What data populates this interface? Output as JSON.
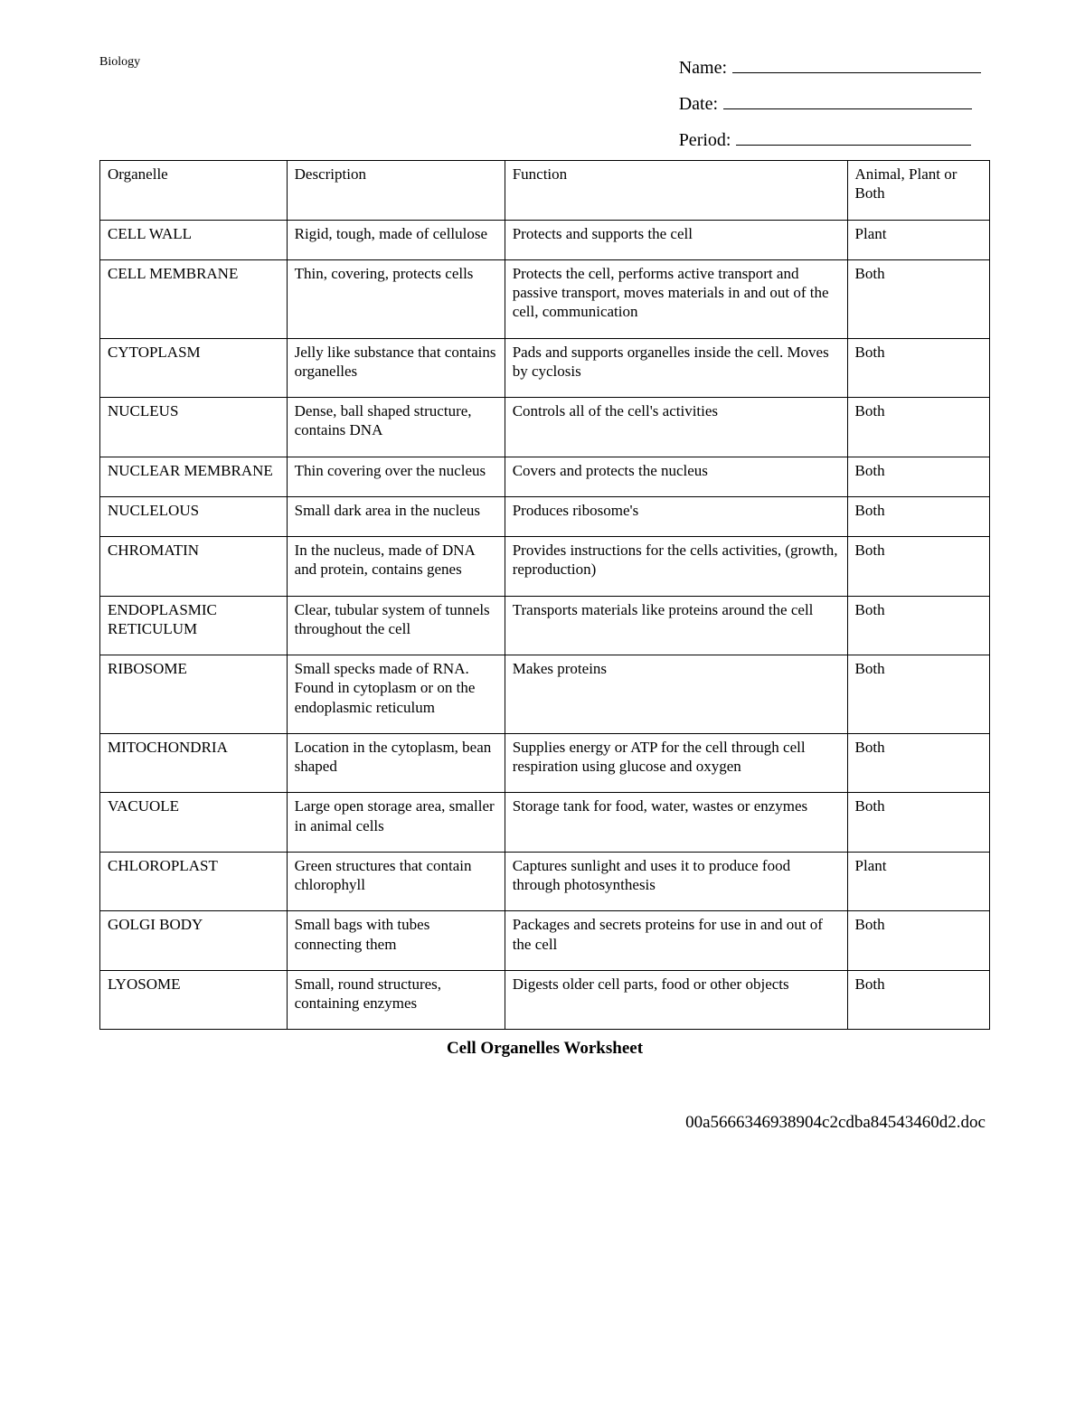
{
  "header": {
    "subject": "Biology",
    "name_label": "Name:",
    "date_label": "Date:",
    "period_label": "Period:"
  },
  "table": {
    "columns": [
      "Organelle",
      "Description",
      "Function",
      "Animal, Plant or Both"
    ],
    "rows": [
      [
        "CELL WALL",
        "Rigid, tough, made of cellulose",
        "Protects and supports the cell",
        "Plant"
      ],
      [
        "CELL MEMBRANE",
        "Thin, covering, protects cells",
        "Protects the cell, performs active transport and passive transport, moves materials in and out of the cell, communication",
        "Both"
      ],
      [
        "CYTOPLASM",
        "Jelly like substance that contains organelles",
        "Pads and supports organelles inside the cell. Moves by cyclosis",
        "Both"
      ],
      [
        "NUCLEUS",
        "Dense, ball shaped structure, contains DNA",
        "Controls all of the cell's activities",
        "Both"
      ],
      [
        "NUCLEAR MEMBRANE",
        "Thin covering over the nucleus",
        "Covers and protects the nucleus",
        "Both"
      ],
      [
        "NUCLELOUS",
        "Small dark area in the nucleus",
        "Produces ribosome's",
        "Both"
      ],
      [
        "CHROMATIN",
        "In the nucleus, made of DNA and protein, contains genes",
        "Provides instructions for the cells activities, (growth, reproduction)",
        "Both"
      ],
      [
        "ENDOPLASMIC RETICULUM",
        "Clear, tubular system of tunnels throughout the cell",
        "Transports materials like proteins around the cell",
        "Both"
      ],
      [
        "RIBOSOME",
        "Small specks made of RNA. Found in cytoplasm or on the endoplasmic reticulum",
        "Makes proteins",
        "Both"
      ],
      [
        "MITOCHONDRIA",
        "Location in the cytoplasm, bean shaped",
        "Supplies energy or ATP for the cell through cell respiration using glucose and oxygen",
        "Both"
      ],
      [
        "VACUOLE",
        "Large open storage area, smaller in animal cells",
        "Storage tank for food, water, wastes or enzymes",
        "Both"
      ],
      [
        "CHLOROPLAST",
        "Green structures that contain chlorophyll",
        "Captures sunlight and uses it to produce food through photosynthesis",
        "Plant"
      ],
      [
        "GOLGI BODY",
        "Small bags with tubes connecting them",
        "Packages and secrets proteins for use in and out of the cell",
        "Both"
      ],
      [
        "LYOSOME",
        "Small, round structures, containing enzymes",
        "Digests older cell parts, food or other objects",
        "Both"
      ]
    ]
  },
  "title": "Cell Organelles Worksheet",
  "footer": "00a5666346938904c2cdba84543460d2.doc"
}
